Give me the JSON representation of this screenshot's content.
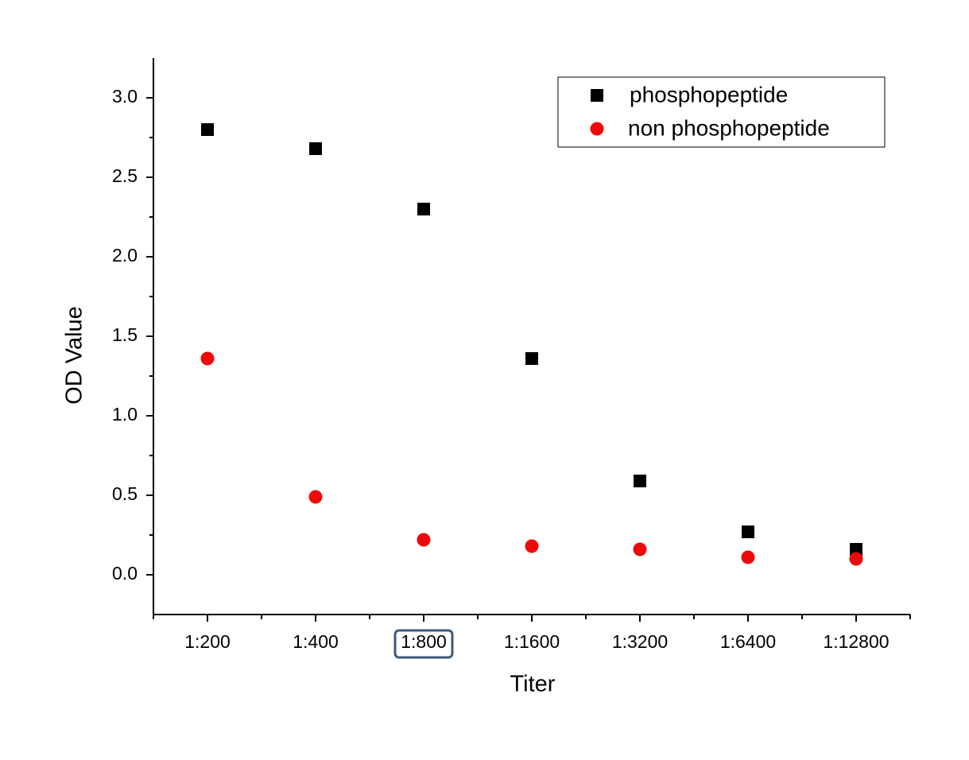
{
  "chart_data": {
    "type": "scatter",
    "x_label": "Titer",
    "y_label": "OD Value",
    "categories": [
      "1:200",
      "1:400",
      "1:800",
      "1:1600",
      "1:3200",
      "1:6400",
      "1:12800"
    ],
    "series": [
      {
        "name": "phosphopeptide",
        "color": "#000000",
        "marker": "square",
        "values": [
          2.8,
          2.68,
          2.3,
          1.36,
          0.59,
          0.27,
          0.16
        ]
      },
      {
        "name": "non phosphopeptide",
        "color": "#ee0a0a",
        "marker": "circle",
        "values": [
          1.36,
          0.49,
          0.22,
          0.18,
          0.16,
          0.11,
          0.1
        ]
      }
    ],
    "ylim": [
      -0.25,
      3.25
    ],
    "yticks": [
      {
        "value": 0,
        "label": "0.0"
      },
      0.5,
      {
        "value": 1,
        "label": "1.0"
      },
      1.5,
      {
        "value": 2,
        "label": "2.0"
      },
      2.5,
      {
        "value": 3,
        "label": "3.0"
      }
    ],
    "grid": false,
    "legend": "upper right"
  }
}
